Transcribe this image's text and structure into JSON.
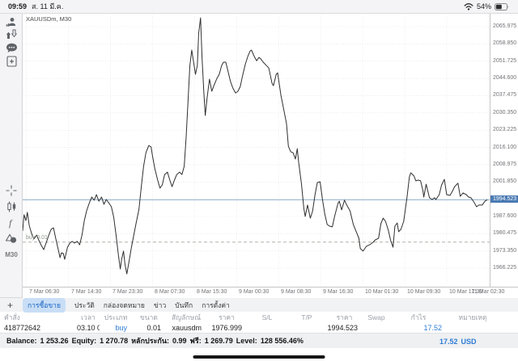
{
  "status_bar": {
    "time": "09:59",
    "date": "ส. 11 มี.ค.",
    "battery": "54%",
    "icons": [
      "wifi-icon",
      "battery-icon"
    ]
  },
  "sidebar": {
    "items": [
      {
        "icon": "profile-icon"
      },
      {
        "icon": "notifications-icon"
      },
      {
        "icon": "chat-icon"
      },
      {
        "icon": "new-order-icon"
      },
      {
        "icon": "crosshair-icon"
      },
      {
        "icon": "candles-icon"
      },
      {
        "icon": "indicator-f-icon"
      },
      {
        "icon": "objects-icon"
      },
      {
        "icon": "timeframe-button",
        "label": "M30"
      }
    ]
  },
  "chart": {
    "symbol_label": "XAUUSDm, M30"
  },
  "chart_data": {
    "type": "line",
    "title": "XAUUSDm, M30",
    "symbol": "XAUUSDm",
    "timeframe": "M30",
    "legend": false,
    "grid": true,
    "ylim": [
      1958.6,
      2071.3
    ],
    "y_ticks": [
      "2065.975",
      "2058.850",
      "2051.725",
      "2044.600",
      "2037.475",
      "2030.350",
      "2023.225",
      "2016.100",
      "2008.975",
      "2001.850",
      "1987.600",
      "1980.475",
      "1973.350",
      "1966.225"
    ],
    "x_ticks": [
      {
        "label": "7 Mar 06:30",
        "f": 0.008
      },
      {
        "label": "7 Mar 14:30",
        "f": 0.098
      },
      {
        "label": "7 Mar 23:30",
        "f": 0.188
      },
      {
        "label": "8 Mar 07:30",
        "f": 0.278
      },
      {
        "label": "8 Mar 15:30",
        "f": 0.368
      },
      {
        "label": "9 Mar 00:30",
        "f": 0.458
      },
      {
        "label": "9 Mar 08:30",
        "f": 0.548
      },
      {
        "label": "9 Mar 16:30",
        "f": 0.638
      },
      {
        "label": "10 Mar 01:30",
        "f": 0.728
      },
      {
        "label": "10 Mar 09:30",
        "f": 0.818
      },
      {
        "label": "10 Mar 17:30",
        "f": 0.908
      },
      {
        "label": "11 Mar 02:30",
        "f": 0.997
      }
    ],
    "current_price": {
      "value": "1994.523",
      "badge_color": "#4a7ab3",
      "line_color": "#7da0c4"
    },
    "position_line": {
      "label": "buy 0.01",
      "price": 1976.999,
      "color": "#a3ab9e"
    },
    "series": [
      {
        "name": "XAUUSDm M30 close",
        "color": "#2f2f2f",
        "points": [
          [
            0.0,
            1981.6
          ],
          [
            0.003,
            1988.3
          ],
          [
            0.007,
            1985.9
          ],
          [
            0.01,
            1989.3
          ],
          [
            0.014,
            1983.9
          ],
          [
            0.019,
            1980.6
          ],
          [
            0.024,
            1978.3
          ],
          [
            0.03,
            1979.9
          ],
          [
            0.035,
            1977.6
          ],
          [
            0.04,
            1975.6
          ],
          [
            0.045,
            1973.9
          ],
          [
            0.05,
            1976.6
          ],
          [
            0.056,
            1979.9
          ],
          [
            0.061,
            1982.3
          ],
          [
            0.066,
            1982.9
          ],
          [
            0.071,
            1978.3
          ],
          [
            0.077,
            1973.3
          ],
          [
            0.08,
            1970.6
          ],
          [
            0.083,
            1972.6
          ],
          [
            0.087,
            1972.3
          ],
          [
            0.09,
            1969.9
          ],
          [
            0.096,
            1974.9
          ],
          [
            0.101,
            1976.6
          ],
          [
            0.106,
            1977.3
          ],
          [
            0.111,
            1976.6
          ],
          [
            0.117,
            1977.3
          ],
          [
            0.122,
            1975.9
          ],
          [
            0.127,
            1979.9
          ],
          [
            0.132,
            1985.9
          ],
          [
            0.137,
            1989.9
          ],
          [
            0.143,
            1993.3
          ],
          [
            0.148,
            1995.6
          ],
          [
            0.153,
            1994.3
          ],
          [
            0.158,
            1996.6
          ],
          [
            0.163,
            1993.9
          ],
          [
            0.169,
            1995.6
          ],
          [
            0.174,
            1992.6
          ],
          [
            0.179,
            1994.6
          ],
          [
            0.184,
            1993.3
          ],
          [
            0.19,
            1991.6
          ],
          [
            0.195,
            1987.3
          ],
          [
            0.2,
            1979.9
          ],
          [
            0.205,
            1971.6
          ],
          [
            0.209,
            1965.9
          ],
          [
            0.212,
            1969.9
          ],
          [
            0.216,
            1973.3
          ],
          [
            0.219,
            1967.9
          ],
          [
            0.223,
            1963.9
          ],
          [
            0.228,
            1969.3
          ],
          [
            0.233,
            1974.9
          ],
          [
            0.238,
            1979.9
          ],
          [
            0.243,
            1984.9
          ],
          [
            0.249,
            1990.6
          ],
          [
            0.254,
            1999.9
          ],
          [
            0.259,
            2008.3
          ],
          [
            0.264,
            2013.9
          ],
          [
            0.27,
            2016.9
          ],
          [
            0.275,
            2016.3
          ],
          [
            0.278,
            2012.6
          ],
          [
            0.283,
            2007.3
          ],
          [
            0.289,
            2002.6
          ],
          [
            0.294,
            1999.3
          ],
          [
            0.299,
            2000.6
          ],
          [
            0.304,
            2004.9
          ],
          [
            0.31,
            2005.9
          ],
          [
            0.315,
            2002.6
          ],
          [
            0.32,
            1999.9
          ],
          [
            0.325,
            2002.6
          ],
          [
            0.33,
            2004.9
          ],
          [
            0.336,
            2005.9
          ],
          [
            0.341,
            2004.9
          ],
          [
            0.346,
            2008.3
          ],
          [
            0.35,
            2019.9
          ],
          [
            0.355,
            2038.3
          ],
          [
            0.358,
            2049.9
          ],
          [
            0.362,
            2056.3
          ],
          [
            0.365,
            2052.6
          ],
          [
            0.37,
            2046.3
          ],
          [
            0.374,
            2049.9
          ],
          [
            0.377,
            2063.3
          ],
          [
            0.381,
            2069.6
          ],
          [
            0.384,
            2053.3
          ],
          [
            0.388,
            2038.6
          ],
          [
            0.391,
            2029.3
          ],
          [
            0.395,
            2036.6
          ],
          [
            0.4,
            2044.3
          ],
          [
            0.405,
            2039.3
          ],
          [
            0.41,
            2041.9
          ],
          [
            0.416,
            2044.6
          ],
          [
            0.421,
            2046.3
          ],
          [
            0.426,
            2049.9
          ],
          [
            0.43,
            2051.3
          ],
          [
            0.435,
            2051.3
          ],
          [
            0.44,
            2047.3
          ],
          [
            0.445,
            2043.3
          ],
          [
            0.45,
            2040.6
          ],
          [
            0.456,
            2038.6
          ],
          [
            0.461,
            2039.3
          ],
          [
            0.466,
            2041.3
          ],
          [
            0.471,
            2045.9
          ],
          [
            0.477,
            2050.6
          ],
          [
            0.482,
            2053.6
          ],
          [
            0.487,
            2055.9
          ],
          [
            0.49,
            2056.3
          ],
          [
            0.496,
            2053.6
          ],
          [
            0.501,
            2051.9
          ],
          [
            0.506,
            2053.3
          ],
          [
            0.51,
            2052.6
          ],
          [
            0.515,
            2051.3
          ],
          [
            0.522,
            2049.9
          ],
          [
            0.527,
            2048.9
          ],
          [
            0.534,
            2042.6
          ],
          [
            0.537,
            2041.6
          ],
          [
            0.543,
            2046.3
          ],
          [
            0.546,
            2046.9
          ],
          [
            0.553,
            2037.6
          ],
          [
            0.56,
            2030.9
          ],
          [
            0.565,
            2025.9
          ],
          [
            0.569,
            2016.6
          ],
          [
            0.574,
            2014.3
          ],
          [
            0.579,
            2013.9
          ],
          [
            0.584,
            2011.3
          ],
          [
            0.588,
            2015.6
          ],
          [
            0.591,
            2009.9
          ],
          [
            0.597,
            2000.9
          ],
          [
            0.602,
            1990.9
          ],
          [
            0.605,
            1987.6
          ],
          [
            0.61,
            1992.3
          ],
          [
            0.616,
            1986.9
          ],
          [
            0.621,
            1989.9
          ],
          [
            0.626,
            1996.6
          ],
          [
            0.631,
            2001.6
          ],
          [
            0.637,
            2001.9
          ],
          [
            0.642,
            1994.6
          ],
          [
            0.647,
            1988.6
          ],
          [
            0.652,
            1984.3
          ],
          [
            0.657,
            1983.6
          ],
          [
            0.663,
            1983.3
          ],
          [
            0.668,
            1987.6
          ],
          [
            0.675,
            1992.9
          ],
          [
            0.678,
            1993.9
          ],
          [
            0.683,
            1990.3
          ],
          [
            0.689,
            1994.3
          ],
          [
            0.694,
            1992.3
          ],
          [
            0.701,
            1989.9
          ],
          [
            0.708,
            1984.3
          ],
          [
            0.715,
            1980.9
          ],
          [
            0.72,
            1978.6
          ],
          [
            0.723,
            1974.3
          ],
          [
            0.729,
            1973.3
          ],
          [
            0.736,
            1975.3
          ],
          [
            0.743,
            1975.9
          ],
          [
            0.75,
            1976.9
          ],
          [
            0.755,
            1977.9
          ],
          [
            0.762,
            1978.6
          ],
          [
            0.767,
            1984.6
          ],
          [
            0.772,
            1986.9
          ],
          [
            0.777,
            1985.6
          ],
          [
            0.783,
            1981.9
          ],
          [
            0.788,
            1977.6
          ],
          [
            0.793,
            1974.9
          ],
          [
            0.797,
            1983.6
          ],
          [
            0.802,
            1984.9
          ],
          [
            0.805,
            1981.3
          ],
          [
            0.81,
            1982.3
          ],
          [
            0.816,
            1985.6
          ],
          [
            0.823,
            1995.6
          ],
          [
            0.828,
            2003.9
          ],
          [
            0.831,
            2005.6
          ],
          [
            0.838,
            2004.3
          ],
          [
            0.842,
            2002.3
          ],
          [
            0.847,
            2002.6
          ],
          [
            0.852,
            2002.3
          ],
          [
            0.857,
            1998.3
          ],
          [
            0.859,
            1995.6
          ],
          [
            0.864,
            2000.9
          ],
          [
            0.871,
            1995.3
          ],
          [
            0.877,
            1994.6
          ],
          [
            0.882,
            1995.3
          ],
          [
            0.885,
            1994.6
          ],
          [
            0.892,
            1996.6
          ],
          [
            0.897,
            2000.6
          ],
          [
            0.903,
            2002.9
          ],
          [
            0.908,
            1996.6
          ],
          [
            0.915,
            1996.3
          ],
          [
            0.92,
            1997.9
          ],
          [
            0.925,
            1999.9
          ],
          [
            0.932,
            2001.3
          ],
          [
            0.937,
            1995.9
          ],
          [
            0.943,
            1997.3
          ],
          [
            0.95,
            1996.6
          ],
          [
            0.955,
            1995.6
          ],
          [
            0.96,
            1995.3
          ],
          [
            0.967,
            1993.3
          ],
          [
            0.972,
            1991.6
          ],
          [
            0.977,
            1992.3
          ],
          [
            0.984,
            1992.3
          ],
          [
            0.99,
            1993.9
          ],
          [
            0.995,
            1994.5
          ]
        ]
      }
    ]
  },
  "tabs": {
    "items": [
      {
        "label": "การซื้อขาย",
        "selected": true
      },
      {
        "label": "ประวัติ",
        "selected": false
      },
      {
        "label": "กล่องจดหมาย",
        "selected": false
      },
      {
        "label": "ข่าว",
        "selected": false
      },
      {
        "label": "บันทึก",
        "selected": false
      },
      {
        "label": "การตั้งค่า",
        "selected": false
      }
    ]
  },
  "table": {
    "headers": [
      "คำสั่ง",
      "เวลา",
      "ประเภท",
      "ขนาด",
      "สัญลักษณ์",
      "ราคา",
      "S/L",
      "T/P",
      "ราคา",
      "Swap",
      "กำไร",
      "หมายเหตุ"
    ],
    "rows": [
      {
        "order": "418772642",
        "time": "03.10 04:06",
        "type": "buy",
        "volume": "0.01",
        "symbol": "xauusdm",
        "open_price": "1976.999",
        "sl": "",
        "tp": "",
        "price": "1994.523",
        "swap": "",
        "profit": "17.52",
        "comment": ""
      }
    ]
  },
  "summary": {
    "balance_label": "Balance:",
    "balance": "1 253.26",
    "equity_label": "Equity:",
    "equity": "1 270.78",
    "margin_label": "หลักประกัน:",
    "margin": "0.99",
    "free_label": "ฟรี:",
    "free": "1 269.79",
    "level_label": "Level:",
    "level": "128 556.46%",
    "total_profit": "17.52",
    "currency": "USD"
  },
  "colors": {
    "accent_blue": "#2e7cd6",
    "selected_tab_bg": "#c9def6",
    "badge_blue": "#4a7ab3",
    "line": "#2f2f2f"
  }
}
